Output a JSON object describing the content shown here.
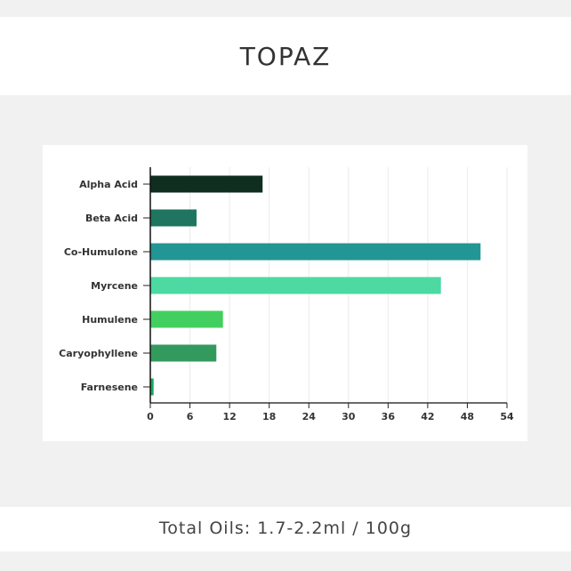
{
  "header": {
    "title": "TOPAZ"
  },
  "footer": {
    "text": "Total Oils: 1.7-2.2ml / 100g"
  },
  "chart_data": {
    "type": "bar",
    "orientation": "horizontal",
    "categories": [
      "Alpha Acid",
      "Beta Acid",
      "Co-Humulone",
      "Myrcene",
      "Humulene",
      "Caryophyllene",
      "Farnesene"
    ],
    "values": [
      17,
      7,
      50,
      44,
      11,
      10,
      0.5
    ],
    "colors": [
      "#0f2e1f",
      "#1f7560",
      "#229595",
      "#4cd9a2",
      "#43cf5f",
      "#339a5d",
      "#1aa85a"
    ],
    "xlim": [
      0,
      54
    ],
    "xticks": [
      0,
      6,
      12,
      18,
      24,
      30,
      36,
      42,
      48,
      54
    ],
    "grid": true,
    "legend": "none"
  }
}
